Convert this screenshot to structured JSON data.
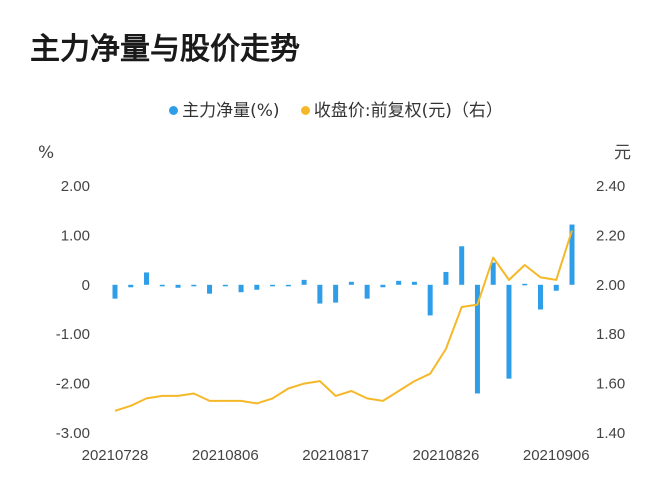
{
  "title": "主力净量与股价走势",
  "colors": {
    "bar": "#2f9ee8",
    "line": "#f5b829",
    "axis": "#444444"
  },
  "chart_data": {
    "type": "bar+line",
    "x_ticks": [
      "20210728",
      "20210806",
      "20210817",
      "20210826",
      "20210906"
    ],
    "dates": [
      "20210728",
      "20210729",
      "20210730",
      "20210802",
      "20210803",
      "20210804",
      "20210805",
      "20210806",
      "20210809",
      "20210810",
      "20210811",
      "20210812",
      "20210813",
      "20210816",
      "20210817",
      "20210818",
      "20210819",
      "20210820",
      "20210823",
      "20210824",
      "20210825",
      "20210826",
      "20210827",
      "20210830",
      "20210831",
      "20210901",
      "20210902",
      "20210903",
      "20210906",
      "20210907"
    ],
    "series": [
      {
        "name": "主力净量(%)",
        "type": "bar",
        "axis": "left",
        "values": [
          -0.28,
          -0.05,
          0.25,
          -0.02,
          -0.06,
          -0.02,
          -0.18,
          -0.03,
          -0.15,
          -0.1,
          -0.03,
          -0.02,
          0.1,
          -0.38,
          -0.36,
          0.06,
          -0.28,
          -0.05,
          0.08,
          0.06,
          -0.62,
          0.26,
          0.78,
          -2.2,
          0.45,
          -1.9,
          0.02,
          -0.5,
          -0.12,
          1.22
        ]
      },
      {
        "name": "收盘价:前复权(元)（右）",
        "type": "line",
        "axis": "right",
        "values": [
          1.49,
          1.51,
          1.54,
          1.55,
          1.55,
          1.56,
          1.53,
          1.53,
          1.53,
          1.52,
          1.54,
          1.58,
          1.6,
          1.61,
          1.55,
          1.57,
          1.54,
          1.53,
          1.57,
          1.61,
          1.64,
          1.74,
          1.91,
          1.92,
          2.11,
          2.02,
          2.08,
          2.03,
          2.02,
          2.22
        ]
      }
    ],
    "left_axis": {
      "unit": "%",
      "ticks": [
        "2.00",
        "1.00",
        "0",
        "-1.00",
        "-2.00",
        "-3.00"
      ],
      "ylim": [
        -3,
        2
      ]
    },
    "right_axis": {
      "unit": "元",
      "ticks": [
        "2.40",
        "2.20",
        "2.00",
        "1.80",
        "1.60",
        "1.40"
      ],
      "ylim": [
        1.4,
        2.4
      ]
    },
    "legend_position": "top-center"
  }
}
